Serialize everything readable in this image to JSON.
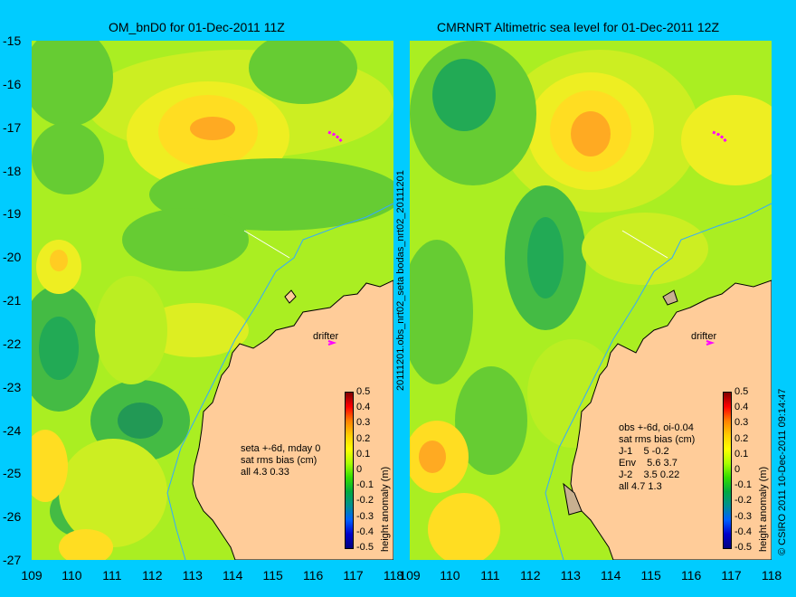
{
  "left_panel": {
    "title": "OM_bnD0 for 01-Dec-2011 11Z",
    "notes": [
      "seta +-6d, mday 0",
      "sat rms bias (cm)",
      "all 4.3 0.33"
    ],
    "drifter_label": "drifter"
  },
  "right_panel": {
    "title": "CMRNRT Altimetric sea level  for 01-Dec-2011 12Z",
    "notes": [
      "obs +-6d, oi-0.04",
      "sat rms bias (cm)",
      "J-1    5 -0.2",
      "Env    5.6 3.7",
      "J-2    3.5 0.22",
      "all 4.7 1.3"
    ],
    "drifter_label": "drifter"
  },
  "y_axis_ticks": [
    "-15",
    "-16",
    "-17",
    "-18",
    "-19",
    "-20",
    "-21",
    "-22",
    "-23",
    "-24",
    "-25",
    "-26",
    "-27"
  ],
  "x_axis_ticks": [
    "109",
    "110",
    "111",
    "112",
    "113",
    "114",
    "115",
    "116",
    "117",
    "118"
  ],
  "colorbar": {
    "label": "height anomaly (m)",
    "ticks": [
      "0.5",
      "0.4",
      "0.3",
      "0.2",
      "0.1",
      "0",
      "-0.1",
      "-0.2",
      "-0.3",
      "-0.4",
      "-0.5"
    ]
  },
  "middle_vertical_text": "20111201.obs_nrt02_seta     bodas_nrt02_20111201",
  "credit": "© CSIRO 2011    10-Dec-2011 09:14:47",
  "colors": {
    "background": "#00ccff",
    "land": "#ffcc99",
    "coast": "#000000"
  }
}
